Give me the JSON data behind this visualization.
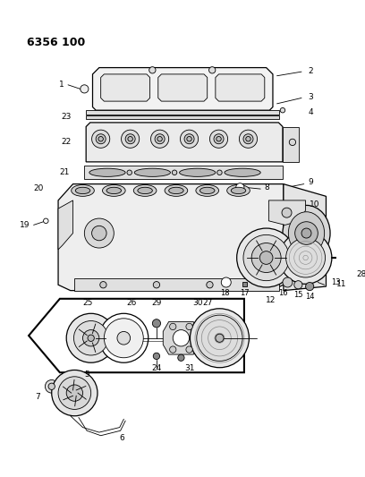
{
  "title": "6356 100",
  "bg": "#ffffff",
  "lc": "#000000",
  "fig_w": 4.08,
  "fig_h": 5.33,
  "dpi": 100
}
